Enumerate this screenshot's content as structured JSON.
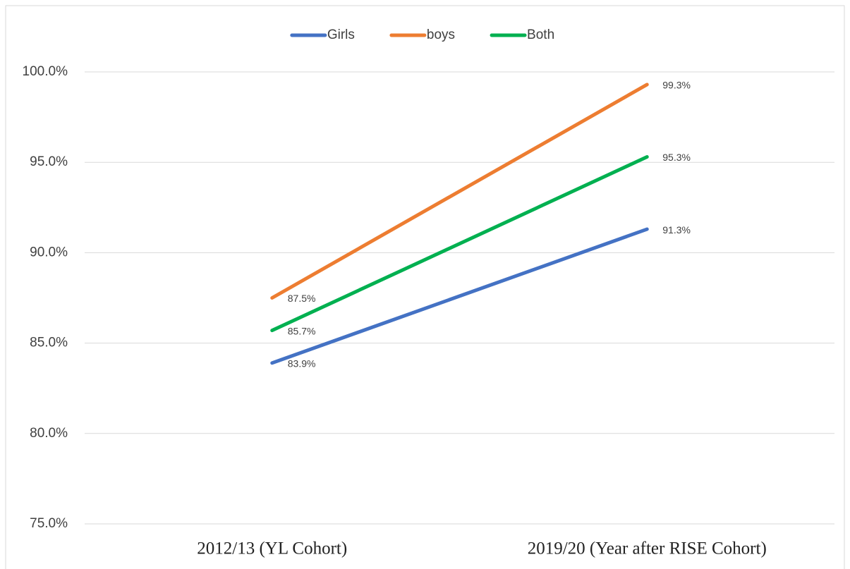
{
  "chart_data": {
    "type": "line",
    "categories": [
      "2012/13  (YL Cohort)",
      "2019/20  (Year after RISE Cohort)"
    ],
    "series": [
      {
        "name": "Girls",
        "color": "#4472c4",
        "values": [
          83.9,
          91.3
        ],
        "value_labels": [
          "83.9%",
          "91.3%"
        ]
      },
      {
        "name": "boys",
        "color": "#ed7d31",
        "values": [
          87.5,
          99.3
        ],
        "value_labels": [
          "87.5%",
          "99.3%"
        ]
      },
      {
        "name": "Both",
        "color": "#00b050",
        "values": [
          85.7,
          95.3
        ],
        "value_labels": [
          "85.7%",
          "95.3%"
        ]
      }
    ],
    "ylim": [
      75,
      100
    ],
    "yticks": [
      {
        "value": 75,
        "label": "75.0%"
      },
      {
        "value": 80,
        "label": "80.0%"
      },
      {
        "value": 85,
        "label": "85.0%"
      },
      {
        "value": 90,
        "label": "90.0%"
      },
      {
        "value": 95,
        "label": "95.0%"
      },
      {
        "value": 100,
        "label": "100.0%"
      }
    ],
    "grid": true,
    "legend": "top"
  }
}
